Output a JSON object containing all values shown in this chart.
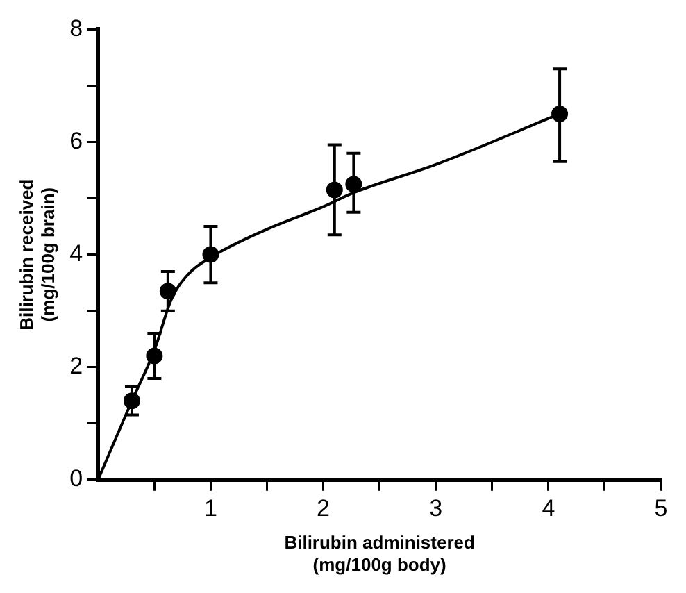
{
  "chart_data": {
    "type": "scatter",
    "xlabel": "Bilirubin administered\n(mg/100g body)",
    "ylabel": "Bilirubin received\n(mg/100g brain)",
    "xlim": [
      0,
      5
    ],
    "ylim": [
      0,
      8
    ],
    "xticks": [
      {
        "value": 0.5,
        "label": null
      },
      1,
      {
        "value": 1.5,
        "label": null
      },
      2,
      {
        "value": 2.5,
        "label": null
      },
      3,
      {
        "value": 3.5,
        "label": null
      },
      4,
      {
        "value": 4.5,
        "label": null
      },
      5
    ],
    "yticks": [
      0,
      {
        "value": 1,
        "label": null
      },
      2,
      {
        "value": 3,
        "label": null
      },
      4,
      {
        "value": 5,
        "label": null
      },
      6,
      {
        "value": 7,
        "label": null
      },
      8
    ],
    "grid": false,
    "legend": false,
    "marker": "circle",
    "series": [
      {
        "type": "scatter",
        "color": "#000000",
        "x": [
          0.3,
          0.5,
          0.62,
          1.0,
          2.1,
          2.27,
          4.1
        ],
        "values": [
          1.4,
          2.2,
          3.35,
          4.0,
          5.15,
          5.25,
          6.5
        ],
        "errors": [
          [
            1.15,
            1.65
          ],
          [
            1.8,
            2.6
          ],
          [
            3.0,
            3.7
          ],
          [
            3.5,
            4.5
          ],
          [
            4.35,
            5.95
          ],
          [
            4.75,
            5.8
          ],
          [
            5.65,
            7.3
          ]
        ]
      },
      {
        "type": "line",
        "color": "#000000",
        "marker": "none",
        "x": [
          0,
          0.3,
          0.5,
          0.65,
          0.8,
          1.0,
          1.5,
          2.0,
          2.27,
          3.0,
          4.1
        ],
        "values": [
          0,
          1.4,
          2.3,
          3.2,
          3.65,
          3.95,
          4.45,
          4.85,
          5.1,
          5.6,
          6.5
        ]
      }
    ]
  }
}
